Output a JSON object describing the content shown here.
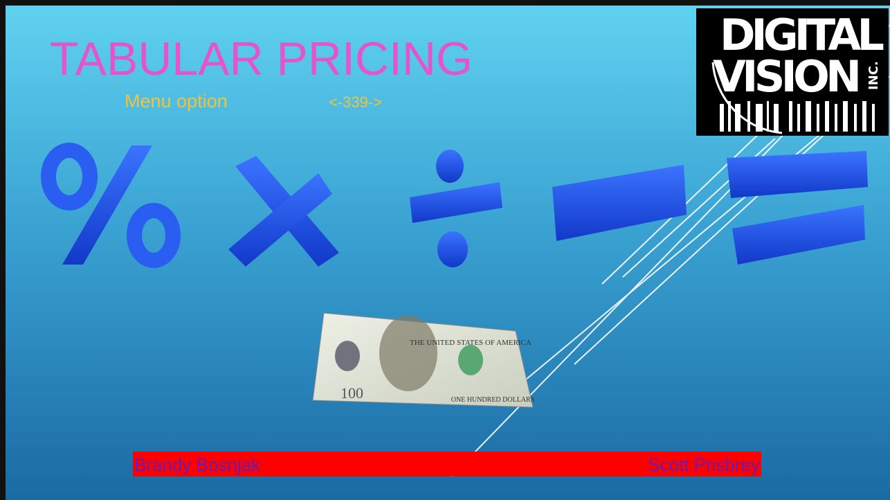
{
  "slide": {
    "title": "TABULAR PRICING",
    "subtitle": {
      "label": "Menu option",
      "code": "<-339->"
    },
    "logo": {
      "line1": "DIGITAL",
      "line2": "VISION",
      "suffix": "INC."
    },
    "banknote": {
      "header": "THE UNITED STATES OF AMERICA",
      "denomination": "100",
      "footer": "ONE HUNDRED DOLLARS"
    },
    "presenters": [
      "Brandy Bosnjak",
      "Scott Prisbrey"
    ]
  }
}
